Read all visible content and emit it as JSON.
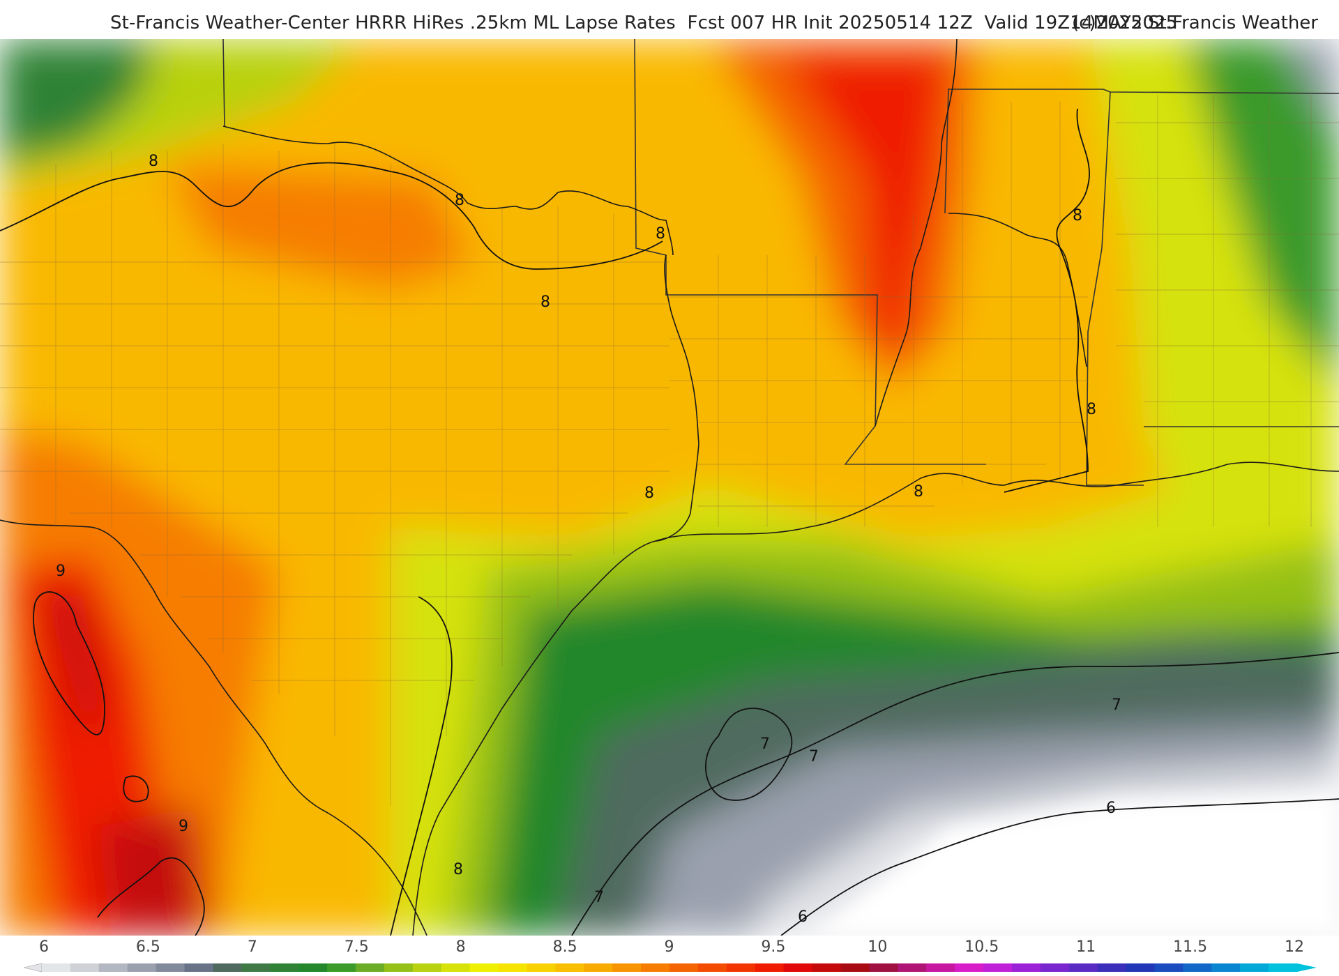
{
  "header": {
    "title": "St-Francis Weather-Center HRRR HiRes .25km ML Lapse Rates  Fcst 007 HR Init 20250514 12Z  Valid 19Z14MAY2025",
    "copyright": "(c)2025 St.Francis Weather"
  },
  "colorbar": {
    "ticks": [
      "6",
      "6.5",
      "7",
      "7.5",
      "8",
      "8.5",
      "9",
      "9.5",
      "10",
      "10.5",
      "11",
      "11.5",
      "12"
    ],
    "colors": [
      "#e4e5e9",
      "#cfd1d7",
      "#b3b7c1",
      "#9aa0ae",
      "#818a9a",
      "#687387",
      "#4f6a5e",
      "#3f7a46",
      "#2f8236",
      "#23872c",
      "#3a9a2a",
      "#6aac24",
      "#94c018",
      "#b8d110",
      "#d6e20a",
      "#eef000",
      "#f6e400",
      "#f8d200",
      "#f9be00",
      "#f8aa00",
      "#f79400",
      "#f67d00",
      "#f46400",
      "#f34c00",
      "#f23400",
      "#ef1c00",
      "#e00808",
      "#c40a0a",
      "#a80c12",
      "#a01040",
      "#b01474",
      "#c818a0",
      "#d81ec8",
      "#c020d8",
      "#9c22d8",
      "#7a26d0",
      "#5a2ac4",
      "#3a2eba",
      "#2236b8",
      "#1a4cc0",
      "#1268c8",
      "#0a86d0",
      "#02a8d8",
      "#00c2dc"
    ]
  },
  "map": {
    "contour_labels": [
      "8",
      "8",
      "8",
      "8",
      "8",
      "8",
      "8",
      "8",
      "8",
      "9",
      "9",
      "7",
      "7",
      "7",
      "7",
      "6",
      "6"
    ]
  }
}
